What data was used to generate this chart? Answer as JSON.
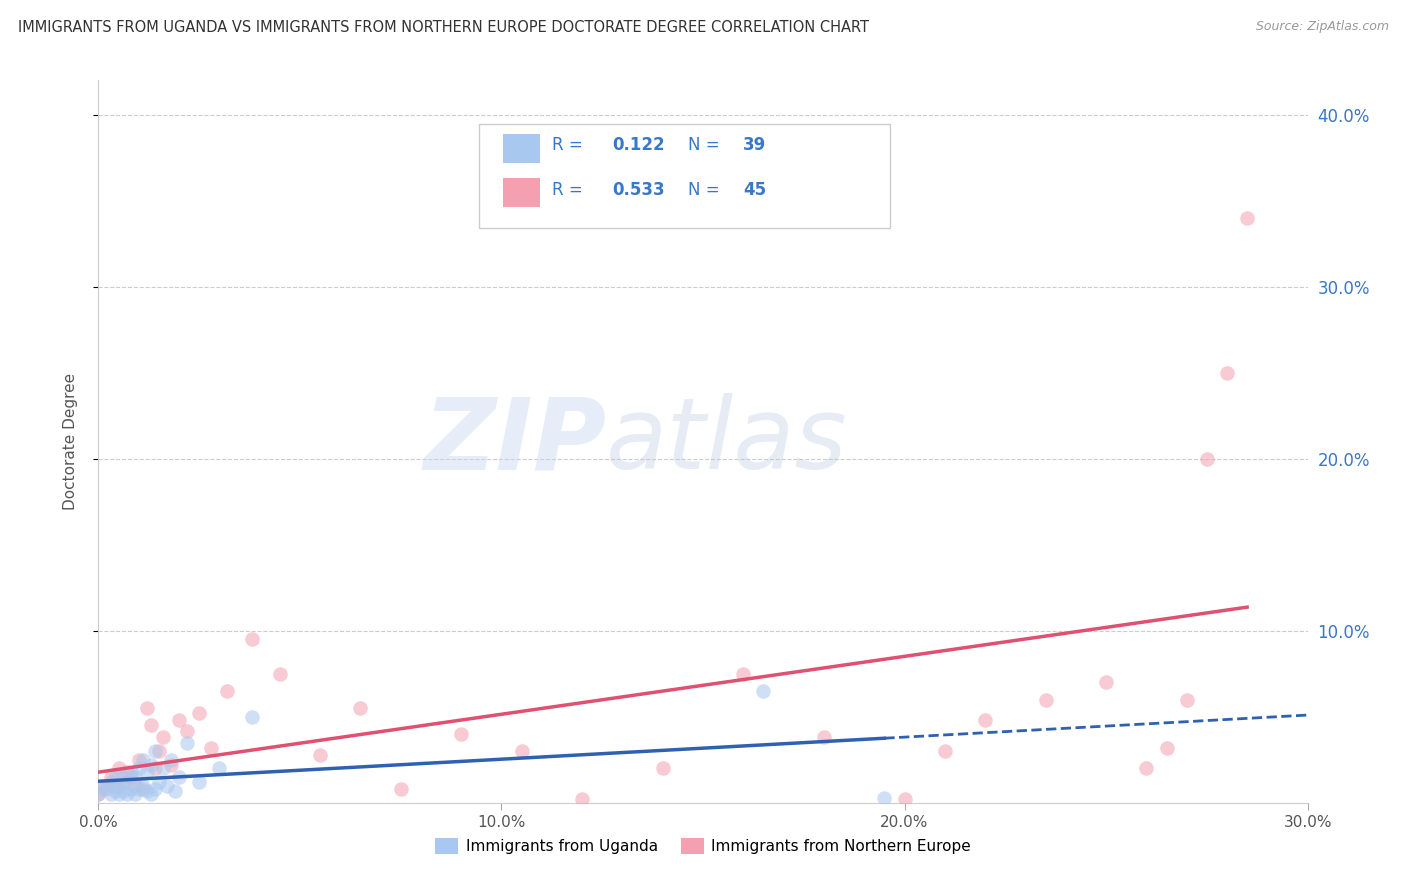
{
  "title": "IMMIGRANTS FROM UGANDA VS IMMIGRANTS FROM NORTHERN EUROPE DOCTORATE DEGREE CORRELATION CHART",
  "source": "Source: ZipAtlas.com",
  "ylabel_label": "Doctorate Degree",
  "xlim": [
    0.0,
    0.3
  ],
  "ylim": [
    0.0,
    0.42
  ],
  "xtick_labels": [
    "0.0%",
    "10.0%",
    "20.0%",
    "30.0%"
  ],
  "xtick_values": [
    0.0,
    0.1,
    0.2,
    0.3
  ],
  "ytick_labels": [
    "10.0%",
    "20.0%",
    "30.0%",
    "40.0%"
  ],
  "ytick_values": [
    0.1,
    0.2,
    0.3,
    0.4
  ],
  "legend_r1": "R =  0.122",
  "legend_n1": "N = 39",
  "legend_r2": "R =  0.533",
  "legend_n2": "N = 45",
  "color_uganda": "#a8c8f0",
  "color_northern": "#f4a0b0",
  "color_uganda_line": "#3060b0",
  "color_northern_line": "#e05070",
  "color_blue_text": "#3878c8",
  "watermark_zip": "ZIP",
  "watermark_atlas": "atlas",
  "scatter_alpha": 0.55,
  "marker_size": 110,
  "legend_bottom_label1": "Immigrants from Uganda",
  "legend_bottom_label2": "Immigrants from Northern Europe",
  "uganda_x": [
    0.0,
    0.001,
    0.002,
    0.003,
    0.003,
    0.004,
    0.004,
    0.005,
    0.005,
    0.006,
    0.006,
    0.007,
    0.007,
    0.008,
    0.008,
    0.009,
    0.009,
    0.01,
    0.01,
    0.011,
    0.011,
    0.012,
    0.012,
    0.013,
    0.013,
    0.014,
    0.014,
    0.015,
    0.016,
    0.017,
    0.018,
    0.019,
    0.02,
    0.022,
    0.025,
    0.03,
    0.038,
    0.165,
    0.195
  ],
  "uganda_y": [
    0.005,
    0.008,
    0.01,
    0.005,
    0.012,
    0.007,
    0.015,
    0.005,
    0.01,
    0.007,
    0.015,
    0.005,
    0.012,
    0.008,
    0.018,
    0.005,
    0.015,
    0.008,
    0.02,
    0.01,
    0.025,
    0.007,
    0.018,
    0.005,
    0.022,
    0.008,
    0.03,
    0.012,
    0.02,
    0.01,
    0.025,
    0.007,
    0.015,
    0.035,
    0.012,
    0.02,
    0.05,
    0.065,
    0.003
  ],
  "northern_x": [
    0.0,
    0.001,
    0.002,
    0.003,
    0.004,
    0.005,
    0.006,
    0.007,
    0.008,
    0.009,
    0.01,
    0.011,
    0.012,
    0.013,
    0.014,
    0.015,
    0.016,
    0.018,
    0.02,
    0.022,
    0.025,
    0.028,
    0.032,
    0.038,
    0.045,
    0.055,
    0.065,
    0.075,
    0.09,
    0.105,
    0.12,
    0.14,
    0.16,
    0.18,
    0.2,
    0.21,
    0.22,
    0.235,
    0.25,
    0.26,
    0.265,
    0.27,
    0.275,
    0.28,
    0.285
  ],
  "northern_y": [
    0.005,
    0.01,
    0.008,
    0.015,
    0.01,
    0.02,
    0.012,
    0.018,
    0.015,
    0.01,
    0.025,
    0.008,
    0.055,
    0.045,
    0.02,
    0.03,
    0.038,
    0.022,
    0.048,
    0.042,
    0.052,
    0.032,
    0.065,
    0.095,
    0.075,
    0.028,
    0.055,
    0.008,
    0.04,
    0.03,
    0.002,
    0.02,
    0.075,
    0.038,
    0.002,
    0.03,
    0.048,
    0.06,
    0.07,
    0.02,
    0.032,
    0.06,
    0.2,
    0.25,
    0.34
  ]
}
